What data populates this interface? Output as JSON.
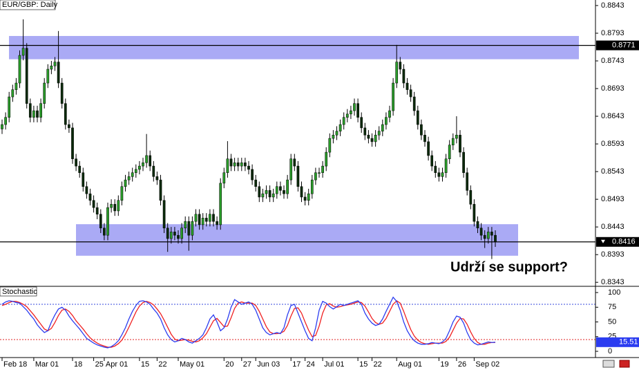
{
  "chart_data": [
    {
      "type": "candlestick",
      "title": "EUR/GBP: Daily",
      "categories": [
        "Feb 18",
        null,
        null,
        null,
        null,
        null,
        null,
        null,
        null,
        "Mar 01",
        null,
        null,
        null,
        null,
        null,
        null,
        null,
        null,
        null,
        null,
        "18",
        null,
        null,
        null,
        null,
        null,
        "25",
        null,
        null,
        "Apr 01",
        null,
        null,
        null,
        null,
        null,
        null,
        null,
        null,
        null,
        "15",
        null,
        null,
        null,
        null,
        "22",
        null,
        null,
        null,
        null,
        null,
        "May 01",
        null,
        null,
        null,
        null,
        null,
        null,
        null,
        null,
        null,
        null,
        null,
        null,
        "20",
        null,
        null,
        null,
        null,
        "27",
        null,
        null,
        null,
        "Jun 03",
        null,
        null,
        null,
        null,
        null,
        null,
        null,
        null,
        null,
        "17",
        null,
        null,
        null,
        "24",
        null,
        null,
        null,
        null,
        "Jul 01",
        null,
        null,
        null,
        null,
        null,
        null,
        null,
        null,
        null,
        "15",
        null,
        null,
        null,
        "22",
        null,
        null,
        null,
        null,
        null,
        null,
        "Aug 01",
        null,
        null,
        null,
        null,
        null,
        null,
        null,
        null,
        null,
        null,
        null,
        "19",
        null,
        null,
        null,
        null,
        "26",
        null,
        null,
        null,
        null,
        "Sep 02",
        null,
        null,
        null,
        null,
        null,
        null
      ],
      "open": [
        0.862,
        0.8628,
        0.8641,
        0.8678,
        0.8691,
        0.8703,
        0.8753,
        0.8766,
        0.8666,
        0.8641,
        0.8653,
        0.8641,
        0.8666,
        0.8703,
        0.8728,
        0.8734,
        0.8741,
        0.8703,
        0.8666,
        0.8628,
        0.8622,
        0.8566,
        0.8553,
        0.8541,
        0.8516,
        0.8503,
        0.8491,
        0.8478,
        0.8466,
        0.8441,
        0.8428,
        0.8478,
        0.8484,
        0.8472,
        0.8491,
        0.8516,
        0.8528,
        0.8534,
        0.8541,
        0.8547,
        0.8553,
        0.8559,
        0.8572,
        0.8553,
        0.8534,
        0.8528,
        0.8491,
        0.8441,
        0.8422,
        0.8434,
        0.8428,
        0.8422,
        0.8441,
        0.8453,
        0.8428,
        0.8453,
        0.8466,
        0.8447,
        0.8459,
        0.8453,
        0.8466,
        0.8453,
        0.8447,
        0.8522,
        0.8541,
        0.8566,
        0.8553,
        0.8559,
        0.8553,
        0.8559,
        0.8553,
        0.8547,
        0.8528,
        0.8516,
        0.8497,
        0.8503,
        0.8509,
        0.8497,
        0.8503,
        0.8516,
        0.8509,
        0.8503,
        0.8528,
        0.8566,
        0.8553,
        0.8516,
        0.8497,
        0.8491,
        0.8503,
        0.8528,
        0.8541,
        0.8541,
        0.8553,
        0.8578,
        0.8603,
        0.8609,
        0.8616,
        0.8628,
        0.8641,
        0.8647,
        0.8653,
        0.8666,
        0.8641,
        0.8622,
        0.8609,
        0.8603,
        0.8597,
        0.8609,
        0.8616,
        0.8628,
        0.8641,
        0.8653,
        0.8703,
        0.8741,
        0.8728,
        0.8703,
        0.8691,
        0.8678,
        0.8653,
        0.8628,
        0.8609,
        0.8597,
        0.8572,
        0.8553,
        0.8541,
        0.8534,
        0.8541,
        0.8566,
        0.8591,
        0.8603,
        0.8609,
        0.8578,
        0.8541,
        0.8509,
        0.8484,
        0.8453,
        0.8441,
        0.8428,
        0.8422,
        0.8434,
        0.8428
      ],
      "high": [
        0.8637,
        0.865,
        0.8687,
        0.87,
        0.8712,
        0.8762,
        0.8818,
        0.8775,
        0.8675,
        0.8662,
        0.8662,
        0.8675,
        0.8712,
        0.8737,
        0.8743,
        0.875,
        0.8797,
        0.8712,
        0.8675,
        0.8637,
        0.8631,
        0.8575,
        0.8562,
        0.855,
        0.8525,
        0.8512,
        0.85,
        0.8487,
        0.8475,
        0.845,
        0.8487,
        0.8493,
        0.8493,
        0.85,
        0.8525,
        0.8537,
        0.8543,
        0.855,
        0.8556,
        0.8562,
        0.8568,
        0.8611,
        0.8581,
        0.8562,
        0.8543,
        0.8537,
        0.85,
        0.845,
        0.8443,
        0.8443,
        0.8437,
        0.845,
        0.8462,
        0.8462,
        0.8462,
        0.8475,
        0.8475,
        0.8468,
        0.8468,
        0.8475,
        0.8475,
        0.8462,
        0.8531,
        0.855,
        0.8598,
        0.8575,
        0.8568,
        0.8568,
        0.8568,
        0.8568,
        0.8562,
        0.8556,
        0.8537,
        0.8525,
        0.8512,
        0.8518,
        0.8518,
        0.8512,
        0.8525,
        0.8525,
        0.8518,
        0.8537,
        0.8575,
        0.8575,
        0.8562,
        0.8525,
        0.8506,
        0.8512,
        0.8537,
        0.855,
        0.855,
        0.8562,
        0.8587,
        0.8612,
        0.8618,
        0.8625,
        0.8637,
        0.865,
        0.8656,
        0.8662,
        0.8675,
        0.8675,
        0.865,
        0.8631,
        0.8618,
        0.8612,
        0.8618,
        0.8625,
        0.8637,
        0.865,
        0.8662,
        0.8712,
        0.8772,
        0.875,
        0.8737,
        0.8712,
        0.87,
        0.8687,
        0.8662,
        0.8637,
        0.8618,
        0.8606,
        0.8581,
        0.8562,
        0.855,
        0.855,
        0.8575,
        0.86,
        0.8612,
        0.8643,
        0.8618,
        0.8587,
        0.855,
        0.8518,
        0.8493,
        0.8462,
        0.845,
        0.8437,
        0.8443,
        0.8443,
        0.8437
      ],
      "low": [
        0.8611,
        0.8619,
        0.8632,
        0.8669,
        0.8682,
        0.8694,
        0.8744,
        0.8657,
        0.8632,
        0.8632,
        0.8632,
        0.8632,
        0.8657,
        0.8694,
        0.8719,
        0.8725,
        0.8694,
        0.8657,
        0.8619,
        0.8613,
        0.8557,
        0.8544,
        0.8532,
        0.8507,
        0.8494,
        0.8482,
        0.8469,
        0.8457,
        0.8432,
        0.8419,
        0.8419,
        0.8469,
        0.8463,
        0.8463,
        0.8482,
        0.8507,
        0.8519,
        0.8525,
        0.8532,
        0.8538,
        0.8544,
        0.855,
        0.8544,
        0.8525,
        0.8519,
        0.8482,
        0.8432,
        0.8398,
        0.8413,
        0.8419,
        0.8413,
        0.8413,
        0.8432,
        0.84,
        0.8419,
        0.8444,
        0.8438,
        0.8438,
        0.8444,
        0.8444,
        0.8444,
        0.8438,
        0.8438,
        0.8513,
        0.8532,
        0.8544,
        0.8544,
        0.8544,
        0.8544,
        0.8544,
        0.8538,
        0.8519,
        0.8507,
        0.8488,
        0.8488,
        0.8494,
        0.8488,
        0.8488,
        0.8494,
        0.85,
        0.8494,
        0.8494,
        0.8519,
        0.8544,
        0.8507,
        0.8488,
        0.8482,
        0.8482,
        0.8494,
        0.8519,
        0.8532,
        0.8532,
        0.8544,
        0.8569,
        0.8594,
        0.86,
        0.8607,
        0.8619,
        0.8632,
        0.8638,
        0.8644,
        0.8632,
        0.8613,
        0.86,
        0.8594,
        0.8588,
        0.8588,
        0.86,
        0.8607,
        0.8619,
        0.8632,
        0.8644,
        0.8694,
        0.8719,
        0.8694,
        0.8682,
        0.8669,
        0.8644,
        0.8619,
        0.86,
        0.8588,
        0.8563,
        0.8544,
        0.8532,
        0.8525,
        0.8525,
        0.8532,
        0.8557,
        0.8582,
        0.8594,
        0.8569,
        0.8532,
        0.85,
        0.8475,
        0.8444,
        0.8432,
        0.8419,
        0.8405,
        0.8413,
        0.8385,
        0.8407
      ],
      "close": [
        0.8628,
        0.8641,
        0.8678,
        0.8691,
        0.8703,
        0.8753,
        0.8766,
        0.8666,
        0.8641,
        0.8653,
        0.8641,
        0.8666,
        0.8703,
        0.8728,
        0.8734,
        0.8741,
        0.8703,
        0.8666,
        0.8628,
        0.8622,
        0.8566,
        0.8553,
        0.8541,
        0.8516,
        0.8503,
        0.8491,
        0.8478,
        0.8466,
        0.8441,
        0.8428,
        0.8478,
        0.8484,
        0.8472,
        0.8491,
        0.8516,
        0.8528,
        0.8534,
        0.8541,
        0.8547,
        0.8553,
        0.8559,
        0.8572,
        0.8553,
        0.8534,
        0.8528,
        0.8491,
        0.8441,
        0.8422,
        0.8434,
        0.8428,
        0.8422,
        0.8441,
        0.8453,
        0.8428,
        0.8453,
        0.8466,
        0.8447,
        0.8459,
        0.8453,
        0.8466,
        0.8453,
        0.8447,
        0.8522,
        0.8541,
        0.8566,
        0.8553,
        0.8559,
        0.8553,
        0.8559,
        0.8553,
        0.8547,
        0.8528,
        0.8516,
        0.8497,
        0.8503,
        0.8509,
        0.8497,
        0.8503,
        0.8516,
        0.8509,
        0.8503,
        0.8528,
        0.8566,
        0.8553,
        0.8516,
        0.8497,
        0.8491,
        0.8503,
        0.8528,
        0.8541,
        0.8541,
        0.8553,
        0.8578,
        0.8603,
        0.8609,
        0.8616,
        0.8628,
        0.8641,
        0.8647,
        0.8653,
        0.8666,
        0.8641,
        0.8622,
        0.8609,
        0.8603,
        0.8597,
        0.8609,
        0.8616,
        0.8628,
        0.8641,
        0.8653,
        0.8703,
        0.8741,
        0.8728,
        0.8703,
        0.8691,
        0.8678,
        0.8653,
        0.8628,
        0.8609,
        0.8597,
        0.8572,
        0.8553,
        0.8541,
        0.8534,
        0.8541,
        0.8566,
        0.8591,
        0.8603,
        0.8609,
        0.8578,
        0.8541,
        0.8509,
        0.8484,
        0.8453,
        0.8441,
        0.8428,
        0.8422,
        0.8434,
        0.8428,
        0.8416
      ],
      "up_color": "#2a9d2a",
      "down_color": "#0a2a0a",
      "wick_color": "#000000",
      "ylim": [
        0.8337,
        0.8853
      ],
      "yticks": [
        0.8843,
        0.8793,
        0.8743,
        0.8693,
        0.8643,
        0.8593,
        0.8543,
        0.8493,
        0.8443,
        0.8393,
        0.8343
      ],
      "hlines": [
        0.8771,
        0.8416
      ],
      "zones": [
        {
          "from": 0.8746,
          "to": 0.8788
        },
        {
          "from": 0.8391,
          "to": 0.8448
        }
      ],
      "zone_color": "#aaaaf5",
      "annotation": "Udrží se support?"
    },
    {
      "type": "line",
      "title": "Stochastic",
      "series": [
        {
          "color": "#2b3cf0",
          "values": [
            80,
            84,
            86,
            85,
            83,
            82,
            76,
            70,
            62,
            55,
            45,
            38,
            32,
            35,
            50,
            62,
            72,
            75,
            70,
            60,
            52,
            45,
            38,
            30,
            22,
            18,
            14,
            11,
            9,
            7,
            6,
            8,
            12,
            18,
            28,
            40,
            55,
            68,
            78,
            85,
            86,
            84,
            80,
            72,
            65,
            55,
            40,
            28,
            20,
            16,
            18,
            22,
            20,
            16,
            14,
            18,
            22,
            28,
            40,
            55,
            62,
            50,
            35,
            40,
            55,
            75,
            88,
            84,
            80,
            82,
            84,
            80,
            70,
            55,
            40,
            32,
            28,
            30,
            32,
            30,
            40,
            62,
            78,
            80,
            65,
            50,
            35,
            22,
            18,
            40,
            70,
            85,
            82,
            76,
            72,
            76,
            80,
            78,
            80,
            82,
            84,
            86,
            80,
            65,
            55,
            48,
            44,
            46,
            55,
            68,
            80,
            92,
            85,
            70,
            50,
            35,
            25,
            18,
            14,
            12,
            12,
            13,
            15,
            14,
            13,
            16,
            22,
            35,
            50,
            60,
            58,
            48,
            32,
            20,
            14,
            11,
            12,
            14,
            16,
            15,
            15.51
          ]
        },
        {
          "color": "#f02020",
          "values": [
            78,
            80,
            83,
            85,
            85,
            83,
            80,
            76,
            69,
            62,
            54,
            46,
            38,
            35,
            39,
            49,
            61,
            70,
            72,
            68,
            61,
            52,
            45,
            38,
            30,
            23,
            18,
            14,
            11,
            9,
            7,
            7,
            9,
            13,
            19,
            29,
            41,
            54,
            67,
            77,
            83,
            85,
            83,
            79,
            72,
            64,
            53,
            41,
            29,
            21,
            18,
            19,
            20,
            19,
            17,
            16,
            18,
            23,
            30,
            41,
            52,
            56,
            49,
            42,
            43,
            57,
            73,
            82,
            84,
            82,
            82,
            82,
            78,
            68,
            55,
            42,
            33,
            30,
            30,
            31,
            34,
            44,
            60,
            73,
            74,
            65,
            50,
            36,
            25,
            27,
            43,
            65,
            79,
            81,
            77,
            75,
            76,
            78,
            79,
            80,
            82,
            84,
            83,
            77,
            67,
            56,
            49,
            46,
            48,
            56,
            68,
            80,
            86,
            82,
            68,
            52,
            37,
            26,
            19,
            15,
            13,
            12,
            13,
            14,
            14,
            14,
            17,
            24,
            36,
            48,
            56,
            55,
            46,
            33,
            22,
            15,
            12,
            12,
            14,
            15,
            15
          ]
        }
      ],
      "ylim": [
        0,
        100
      ],
      "yticks": [
        100,
        75,
        50,
        25,
        0
      ],
      "levels": [
        {
          "value": 80,
          "color": "#3344dd"
        },
        {
          "value": 20,
          "color": "#e02020"
        }
      ]
    }
  ]
}
